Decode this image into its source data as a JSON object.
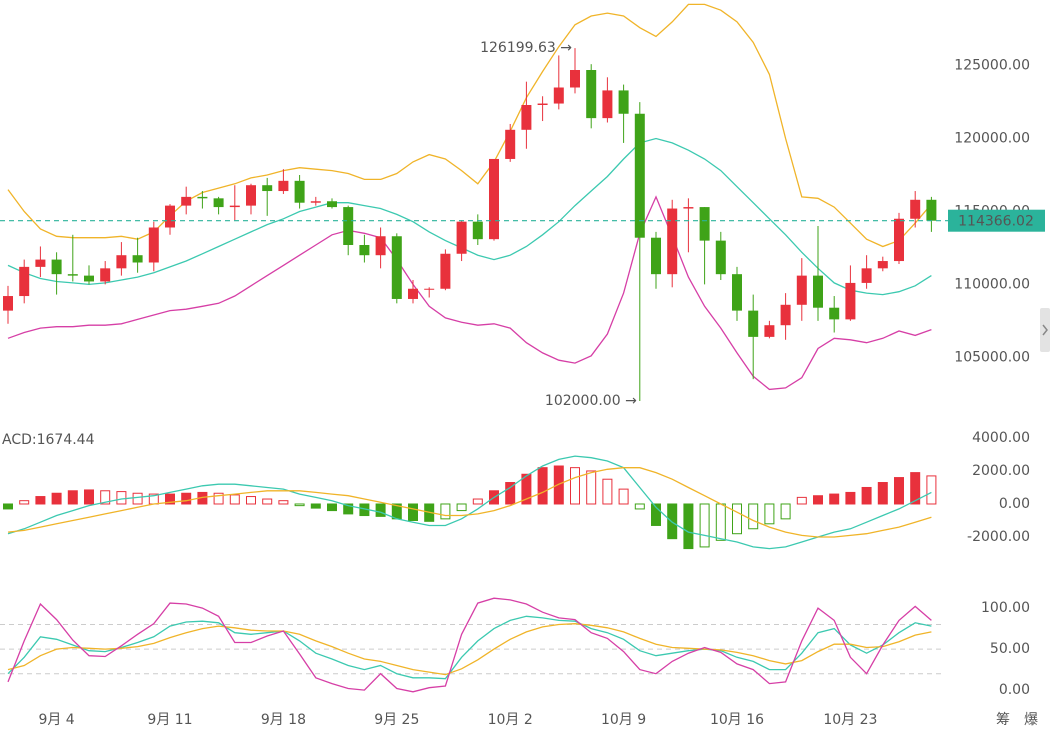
{
  "chart_data": [
    {
      "type": "candlestick",
      "categories": [
        null,
        null,
        null,
        "9月 4",
        null,
        null,
        null,
        null,
        null,
        null,
        "9月 11",
        null,
        null,
        null,
        null,
        null,
        null,
        "9月 18",
        null,
        null,
        null,
        null,
        null,
        null,
        "9月 25",
        null,
        null,
        null,
        null,
        null,
        null,
        "10月 2",
        null,
        null,
        null,
        null,
        null,
        null,
        "10月 9",
        null,
        null,
        null,
        null,
        null,
        null,
        "10月 16",
        null,
        null,
        null,
        null,
        null,
        null,
        "10月 23",
        null,
        null,
        null,
        null,
        null
      ],
      "open": [
        108200,
        109200,
        111200,
        111700,
        110700,
        110600,
        110200,
        111100,
        112000,
        111500,
        113900,
        115400,
        116000,
        115900,
        115300,
        115400,
        116800,
        116400,
        117100,
        115600,
        115700,
        115300,
        112700,
        112000,
        113300,
        109000,
        109700,
        109700,
        112100,
        114300,
        113100,
        118600,
        120600,
        122300,
        122400,
        123500,
        124700,
        121400,
        123300,
        121700,
        113200,
        110700,
        115200,
        115300,
        113000,
        110700,
        108200,
        106400,
        107200,
        108600,
        110600,
        108400,
        107600,
        110100,
        111100,
        111600,
        114500,
        115800
      ],
      "high": [
        109900,
        111700,
        112600,
        112200,
        113400,
        111300,
        111600,
        112900,
        113200,
        114300,
        115500,
        116700,
        116400,
        116000,
        116800,
        116900,
        117300,
        117900,
        117500,
        116000,
        115900,
        115400,
        113400,
        113900,
        113500,
        110300,
        109800,
        112400,
        114400,
        114800,
        118600,
        121000,
        123900,
        122900,
        125700,
        126199.63,
        125100,
        124200,
        123700,
        122500,
        113600,
        115800,
        115900,
        115300,
        113600,
        111200,
        109300,
        107500,
        109400,
        111800,
        114000,
        109200,
        111300,
        112000,
        111900,
        114900,
        116400,
        116000
      ],
      "low": [
        107300,
        108700,
        110500,
        109300,
        110200,
        110000,
        110000,
        110600,
        110800,
        110900,
        113400,
        114800,
        115200,
        114800,
        114400,
        114800,
        114700,
        116200,
        115200,
        115400,
        115200,
        112000,
        111500,
        111100,
        108700,
        108700,
        109100,
        109600,
        111600,
        112700,
        113000,
        118400,
        119300,
        121200,
        122000,
        123100,
        120700,
        121100,
        119700,
        102000,
        109700,
        109800,
        112200,
        110000,
        110300,
        107500,
        103500,
        106300,
        106200,
        107500,
        107500,
        106700,
        107500,
        109700,
        110900,
        111400,
        113900,
        113600
      ],
      "close": [
        109200,
        111200,
        111700,
        110700,
        110600,
        110200,
        111100,
        112000,
        111500,
        113900,
        115400,
        116000,
        115900,
        115300,
        115400,
        116800,
        116400,
        117100,
        115600,
        115700,
        115300,
        112700,
        112000,
        113300,
        109000,
        109700,
        109700,
        112100,
        114300,
        113100,
        118600,
        120600,
        122300,
        122400,
        123500,
        124700,
        121400,
        123300,
        121700,
        113200,
        110700,
        115200,
        115300,
        113000,
        110700,
        108200,
        106400,
        107200,
        108600,
        110600,
        108400,
        107600,
        110100,
        111100,
        111600,
        114500,
        115800,
        114366.02
      ],
      "up_color": "#e8313c",
      "down_color": "#3fa318",
      "lines": [
        {
          "color": "#f0b429",
          "values": [
            116500,
            115000,
            113800,
            113300,
            113200,
            113200,
            113200,
            113300,
            113100,
            113600,
            114700,
            115700,
            116300,
            116600,
            116900,
            117300,
            117500,
            117800,
            118000,
            117900,
            117800,
            117600,
            117200,
            117200,
            117600,
            118400,
            118900,
            118600,
            117800,
            116900,
            118400,
            120500,
            122800,
            124600,
            126300,
            127800,
            128400,
            128600,
            128400,
            127600,
            127000,
            128000,
            129200,
            129200,
            128800,
            128000,
            126600,
            124400,
            120000,
            116000,
            115900,
            115300,
            114200,
            113100,
            112600,
            113000,
            114200,
            115500
          ]
        },
        {
          "color": "#3cc9b0",
          "values": [
            111300,
            110800,
            110400,
            110200,
            110100,
            110000,
            110100,
            110300,
            110500,
            110800,
            111200,
            111600,
            112100,
            112600,
            113100,
            113600,
            114100,
            114500,
            115000,
            115300,
            115600,
            115600,
            115400,
            115200,
            114800,
            114300,
            113600,
            113000,
            112500,
            112000,
            111700,
            112000,
            112600,
            113400,
            114300,
            115400,
            116400,
            117400,
            118600,
            119700,
            120000,
            119700,
            119200,
            118600,
            117800,
            116700,
            115600,
            114500,
            113400,
            112200,
            111100,
            110100,
            109600,
            109400,
            109300,
            109500,
            109900,
            110600
          ]
        },
        {
          "color": "#d63fa6",
          "values": [
            106300,
            106700,
            107000,
            107100,
            107100,
            107200,
            107200,
            107300,
            107600,
            107900,
            108200,
            108300,
            108500,
            108700,
            109200,
            109900,
            110600,
            111300,
            112000,
            112700,
            113400,
            113700,
            113500,
            113200,
            111700,
            110000,
            108500,
            107700,
            107400,
            107200,
            107300,
            107000,
            106000,
            105300,
            104800,
            104600,
            105100,
            106600,
            109400,
            113500,
            116000,
            113300,
            110500,
            108500,
            107000,
            105300,
            103700,
            102800,
            102900,
            103600,
            105600,
            106300,
            106200,
            106000,
            106300,
            106800,
            106500,
            106900
          ]
        }
      ],
      "ylim": [
        100700,
        129500
      ],
      "yticks": [
        {
          "value": 105000,
          "label": "105000.00"
        },
        {
          "value": 110000,
          "label": "110000.00"
        },
        {
          "value": 115000,
          "label": "115000.00"
        },
        {
          "value": 120000,
          "label": "120000.00"
        },
        {
          "value": 125000,
          "label": "125000.00"
        }
      ],
      "annotations": [
        {
          "value": 126199.63,
          "label": "126199.63 →"
        },
        {
          "value": 102000,
          "label": "102000.00 →"
        }
      ],
      "last_price": {
        "value": 114366.02,
        "label": "114366.02",
        "color": "#2bb39b"
      }
    },
    {
      "type": "macd",
      "title": "ACD:1674.44",
      "title_color": "#2bb39b",
      "histogram": [
        -300,
        200,
        450,
        650,
        800,
        850,
        800,
        750,
        650,
        600,
        600,
        650,
        700,
        650,
        550,
        450,
        300,
        200,
        -100,
        -250,
        -400,
        -600,
        -700,
        -750,
        -900,
        -1000,
        -1050,
        -900,
        -400,
        300,
        800,
        1300,
        1800,
        2200,
        2300,
        2200,
        2000,
        1500,
        900,
        -300,
        -1300,
        -2100,
        -2700,
        -2600,
        -2200,
        -1800,
        -1500,
        -1200,
        -900,
        400,
        500,
        600,
        700,
        1000,
        1300,
        1600,
        1900,
        1700
      ],
      "up_color": "#e8313c",
      "down_color": "#3fa318",
      "lines": [
        {
          "color": "#3cc9b0",
          "values": [
            -1800,
            -1500,
            -1100,
            -700,
            -400,
            -100,
            100,
            300,
            400,
            500,
            700,
            900,
            1100,
            1200,
            1200,
            1100,
            1000,
            900,
            600,
            400,
            200,
            -100,
            -300,
            -500,
            -900,
            -1100,
            -1300,
            -1300,
            -900,
            -300,
            400,
            1000,
            1700,
            2300,
            2700,
            2900,
            2800,
            2600,
            2200,
            1000,
            -200,
            -1100,
            -1700,
            -1900,
            -2100,
            -2300,
            -2600,
            -2700,
            -2600,
            -2300,
            -2000,
            -1700,
            -1500,
            -1100,
            -700,
            -300,
            200,
            700
          ]
        },
        {
          "color": "#f0b429",
          "values": [
            -1700,
            -1600,
            -1400,
            -1200,
            -1000,
            -800,
            -600,
            -400,
            -200,
            0,
            100,
            200,
            400,
            500,
            600,
            700,
            800,
            800,
            800,
            700,
            600,
            500,
            300,
            100,
            -100,
            -300,
            -500,
            -700,
            -700,
            -600,
            -400,
            -100,
            300,
            700,
            1200,
            1600,
            1900,
            2100,
            2200,
            2200,
            1900,
            1500,
            1000,
            500,
            0,
            -500,
            -1000,
            -1400,
            -1700,
            -1900,
            -2000,
            -2000,
            -1900,
            -1800,
            -1600,
            -1400,
            -1100,
            -800
          ]
        }
      ],
      "ylim": [
        -4300,
        4480
      ],
      "yticks": [
        {
          "value": 4000,
          "label": "4000.00"
        },
        {
          "value": 2000,
          "label": "2000.00"
        },
        {
          "value": 0,
          "label": "0.00"
        },
        {
          "value": -2000,
          "label": "-2000.00"
        }
      ]
    },
    {
      "type": "kdj",
      "lines": [
        {
          "color": "#3cc9b0",
          "values": [
            20,
            40,
            65,
            62,
            55,
            48,
            47,
            52,
            58,
            65,
            78,
            83,
            84,
            82,
            70,
            68,
            70,
            72,
            60,
            45,
            38,
            30,
            25,
            30,
            20,
            15,
            15,
            14,
            40,
            60,
            75,
            85,
            90,
            88,
            85,
            84,
            75,
            70,
            62,
            48,
            42,
            45,
            48,
            50,
            48,
            40,
            35,
            25,
            25,
            45,
            70,
            75,
            55,
            45,
            55,
            70,
            82,
            78
          ]
        },
        {
          "color": "#f0b429",
          "values": [
            25,
            30,
            42,
            50,
            52,
            51,
            50,
            51,
            53,
            57,
            64,
            70,
            75,
            78,
            76,
            73,
            72,
            72,
            68,
            60,
            53,
            45,
            38,
            35,
            30,
            25,
            22,
            19,
            26,
            37,
            50,
            62,
            71,
            77,
            80,
            81,
            79,
            76,
            71,
            63,
            56,
            52,
            51,
            50,
            49,
            46,
            42,
            36,
            32,
            36,
            47,
            56,
            56,
            52,
            53,
            59,
            67,
            71
          ]
        },
        {
          "color": "#d63fa6",
          "values": [
            10,
            60,
            105,
            86,
            61,
            42,
            41,
            54,
            68,
            81,
            106,
            105,
            100,
            90,
            58,
            58,
            66,
            72,
            44,
            15,
            8,
            2,
            0,
            20,
            2,
            -2,
            3,
            5,
            68,
            106,
            112,
            110,
            105,
            95,
            88,
            86,
            70,
            63,
            47,
            25,
            20,
            35,
            45,
            52,
            46,
            32,
            25,
            8,
            10,
            60,
            100,
            85,
            40,
            20,
            55,
            85,
            102,
            85
          ]
        }
      ],
      "ylim": [
        -12,
        122
      ],
      "yticks": [
        {
          "value": 100,
          "label": "100.00"
        },
        {
          "value": 50,
          "label": "50.00"
        },
        {
          "value": 0,
          "label": "0.00"
        }
      ],
      "levels": [
        80,
        50,
        20
      ]
    }
  ],
  "toolbar": [
    "筹",
    "爆"
  ]
}
